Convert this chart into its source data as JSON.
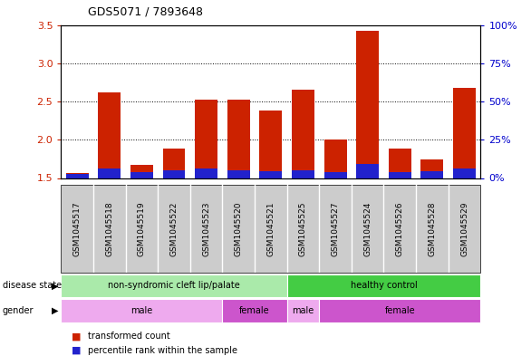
{
  "title": "GDS5071 / 7893648",
  "samples": [
    "GSM1045517",
    "GSM1045518",
    "GSM1045519",
    "GSM1045522",
    "GSM1045523",
    "GSM1045520",
    "GSM1045521",
    "GSM1045525",
    "GSM1045527",
    "GSM1045524",
    "GSM1045526",
    "GSM1045528",
    "GSM1045529"
  ],
  "transformed_count": [
    1.57,
    2.62,
    1.67,
    1.88,
    2.52,
    2.52,
    2.38,
    2.65,
    2.0,
    3.42,
    1.88,
    1.74,
    2.68
  ],
  "percentile_height": [
    0.05,
    0.12,
    0.08,
    0.1,
    0.13,
    0.1,
    0.09,
    0.1,
    0.08,
    0.18,
    0.08,
    0.09,
    0.12
  ],
  "ylim_left": [
    1.5,
    3.5
  ],
  "ylim_right": [
    0,
    100
  ],
  "yticks_left": [
    1.5,
    2.0,
    2.5,
    3.0,
    3.5
  ],
  "yticks_right": [
    0,
    25,
    50,
    75,
    100
  ],
  "ytick_labels_right": [
    "0%",
    "25%",
    "50%",
    "75%",
    "100%"
  ],
  "bar_color": "#cc2200",
  "blue_color": "#2222cc",
  "bar_width": 0.7,
  "disease_state_groups": [
    {
      "label": "non-syndromic cleft lip/palate",
      "start": 0,
      "end": 7,
      "color": "#aaeaaa"
    },
    {
      "label": "healthy control",
      "start": 7,
      "end": 13,
      "color": "#44cc44"
    }
  ],
  "gender_groups": [
    {
      "label": "male",
      "start": 0,
      "end": 5,
      "color": "#eeaaee"
    },
    {
      "label": "female",
      "start": 5,
      "end": 7,
      "color": "#cc55cc"
    },
    {
      "label": "male",
      "start": 7,
      "end": 8,
      "color": "#eeaaee"
    },
    {
      "label": "female",
      "start": 8,
      "end": 13,
      "color": "#cc55cc"
    }
  ],
  "legend": [
    {
      "label": "transformed count",
      "color": "#cc2200"
    },
    {
      "label": "percentile rank within the sample",
      "color": "#2222cc"
    }
  ],
  "tick_color_left": "#cc2200",
  "tick_color_right": "#0000cc",
  "background_xtick": "#cccccc",
  "grid_vals": [
    2.0,
    2.5,
    3.0
  ]
}
